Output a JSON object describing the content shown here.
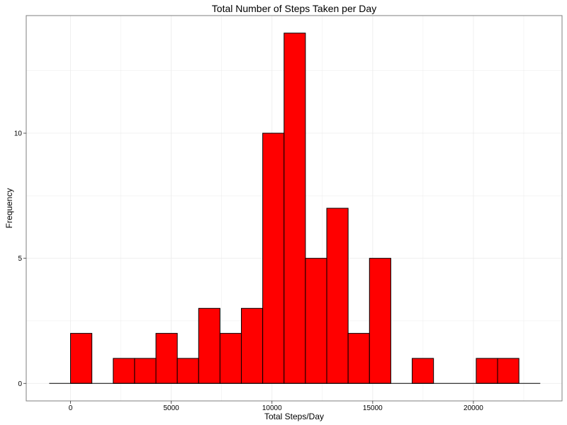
{
  "chart_data": {
    "type": "bar",
    "title": "Total Number of Steps Taken per Day",
    "xlabel": "Total Steps/Day",
    "ylabel": "Frequency",
    "xlim": [
      -2200,
      24400
    ],
    "ylim": [
      -0.7,
      14.7
    ],
    "x_ticks": [
      0,
      5000,
      10000,
      15000,
      20000
    ],
    "x_tick_labels": [
      "0",
      "5000",
      "10000",
      "15000",
      "20000"
    ],
    "y_ticks": [
      0,
      5,
      10
    ],
    "y_tick_labels": [
      "0",
      "5",
      "10"
    ],
    "grid": true,
    "legend": "none",
    "bin_width": 1060,
    "baseline_range": [
      -1060,
      23320
    ],
    "bins": [
      {
        "x_start": 0,
        "x_end": 1060,
        "count": 2
      },
      {
        "x_start": 1060,
        "x_end": 2120,
        "count": 0
      },
      {
        "x_start": 2120,
        "x_end": 3180,
        "count": 1
      },
      {
        "x_start": 3180,
        "x_end": 4240,
        "count": 1
      },
      {
        "x_start": 4240,
        "x_end": 5300,
        "count": 2
      },
      {
        "x_start": 5300,
        "x_end": 6360,
        "count": 1
      },
      {
        "x_start": 6360,
        "x_end": 7420,
        "count": 3
      },
      {
        "x_start": 7420,
        "x_end": 8480,
        "count": 2
      },
      {
        "x_start": 8480,
        "x_end": 9540,
        "count": 3
      },
      {
        "x_start": 9540,
        "x_end": 10600,
        "count": 10
      },
      {
        "x_start": 10600,
        "x_end": 11660,
        "count": 14
      },
      {
        "x_start": 11660,
        "x_end": 12720,
        "count": 5
      },
      {
        "x_start": 12720,
        "x_end": 13780,
        "count": 7
      },
      {
        "x_start": 13780,
        "x_end": 14840,
        "count": 2
      },
      {
        "x_start": 14840,
        "x_end": 15900,
        "count": 5
      },
      {
        "x_start": 15900,
        "x_end": 16960,
        "count": 0
      },
      {
        "x_start": 16960,
        "x_end": 18020,
        "count": 1
      },
      {
        "x_start": 18020,
        "x_end": 19080,
        "count": 0
      },
      {
        "x_start": 19080,
        "x_end": 20140,
        "count": 0
      },
      {
        "x_start": 20140,
        "x_end": 21200,
        "count": 1
      },
      {
        "x_start": 21200,
        "x_end": 22260,
        "count": 1
      }
    ],
    "colors": {
      "bar_fill": "#ff0000",
      "bar_stroke": "#000000",
      "grid": "#ebebeb",
      "panel_border": "#7f7f7f",
      "background": "#ffffff"
    }
  }
}
